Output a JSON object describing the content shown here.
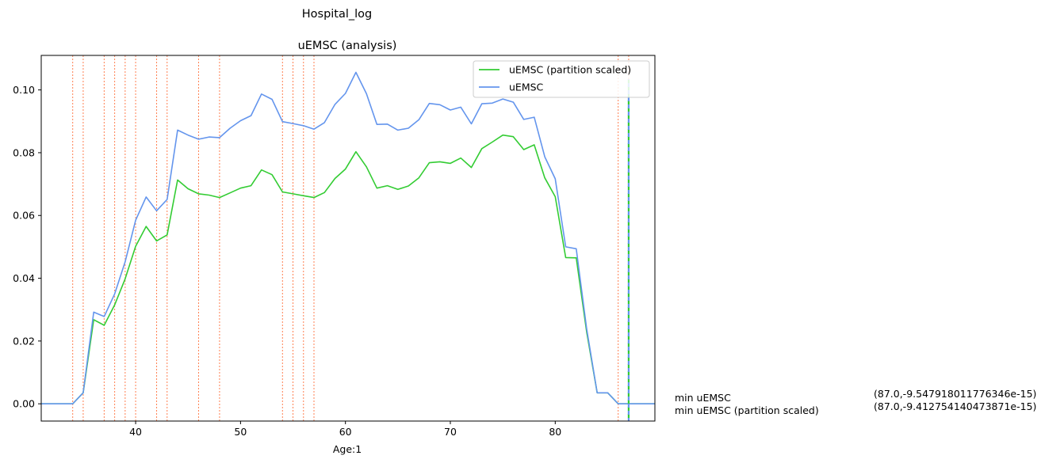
{
  "suptitle": "Hospital_log",
  "chart_data": {
    "type": "line",
    "title": "uEMSC (analysis)",
    "xlabel": "Age:1",
    "ylabel": "",
    "xlim": [
      31,
      89.5
    ],
    "ylim": [
      -0.0055,
      0.111
    ],
    "xticks": [
      40,
      50,
      60,
      70,
      80
    ],
    "yticks": [
      0.0,
      0.02,
      0.04,
      0.06,
      0.08,
      0.1
    ],
    "ytick_labels": [
      "0.00",
      "0.02",
      "0.04",
      "0.06",
      "0.08",
      "0.10"
    ],
    "grid": false,
    "legend": "top-right",
    "x": [
      31,
      32,
      33,
      34,
      35,
      36,
      37,
      38,
      39,
      40,
      41,
      42,
      43,
      44,
      45,
      46,
      47,
      48,
      49,
      50,
      51,
      52,
      53,
      54,
      55,
      56,
      57,
      58,
      59,
      60,
      61,
      62,
      63,
      64,
      65,
      66,
      67,
      68,
      69,
      70,
      71,
      72,
      73,
      74,
      75,
      76,
      77,
      78,
      79,
      80,
      81,
      82,
      83,
      84,
      85,
      86,
      87,
      88,
      89,
      89.5
    ],
    "series": [
      {
        "name": "uEMSC (partition scaled)",
        "color": "#33cc33",
        "values": [
          0,
          0,
          0,
          0,
          0.0035,
          0.0268,
          0.025,
          0.0315,
          0.0398,
          0.0502,
          0.0565,
          0.0519,
          0.0538,
          0.0713,
          0.0685,
          0.0669,
          0.0665,
          0.0657,
          0.0672,
          0.0687,
          0.0695,
          0.0745,
          0.073,
          0.0675,
          0.0669,
          0.0663,
          0.0657,
          0.0673,
          0.0718,
          0.0748,
          0.0803,
          0.0755,
          0.0687,
          0.0695,
          0.0683,
          0.0694,
          0.072,
          0.0768,
          0.0771,
          0.0766,
          0.0783,
          0.0753,
          0.0813,
          0.0834,
          0.0856,
          0.0851,
          0.081,
          0.0825,
          0.072,
          0.066,
          0.0466,
          0.0465,
          0.0228,
          0.0035,
          0.0035,
          0,
          0,
          0,
          0,
          0
        ]
      },
      {
        "name": "uEMSC",
        "color": "#6495ed",
        "values": [
          0,
          0,
          0,
          0,
          0.0035,
          0.0292,
          0.0278,
          0.035,
          0.0452,
          0.0585,
          0.0659,
          0.0615,
          0.0651,
          0.0872,
          0.0856,
          0.0843,
          0.085,
          0.0848,
          0.0878,
          0.0902,
          0.0918,
          0.0987,
          0.097,
          0.0899,
          0.0893,
          0.0886,
          0.0875,
          0.0896,
          0.0954,
          0.0989,
          0.1056,
          0.0988,
          0.089,
          0.0891,
          0.0872,
          0.0878,
          0.0905,
          0.0957,
          0.0953,
          0.0936,
          0.0945,
          0.0892,
          0.0956,
          0.0958,
          0.0971,
          0.0961,
          0.0906,
          0.0913,
          0.0787,
          0.0717,
          0.05,
          0.0494,
          0.0238,
          0.0035,
          0.0035,
          0,
          0,
          0,
          0,
          0
        ]
      }
    ],
    "vlines": {
      "color": "#ff7f50",
      "style": "dotted",
      "x": [
        34,
        35,
        37,
        38,
        39,
        40,
        42,
        43,
        46,
        48,
        54,
        55,
        56,
        57,
        86,
        87
      ]
    },
    "min_marker": {
      "x": 87,
      "colors": [
        "#33cc33",
        "#6495ed"
      ],
      "style": "dashed"
    },
    "annotations": [
      {
        "label": "min uEMSC",
        "value": "(87.0,-9.547918011776346e-15)"
      },
      {
        "label": "min uEMSC (partition scaled)",
        "value": "(87.0,-9.412754140473871e-15)"
      }
    ]
  }
}
